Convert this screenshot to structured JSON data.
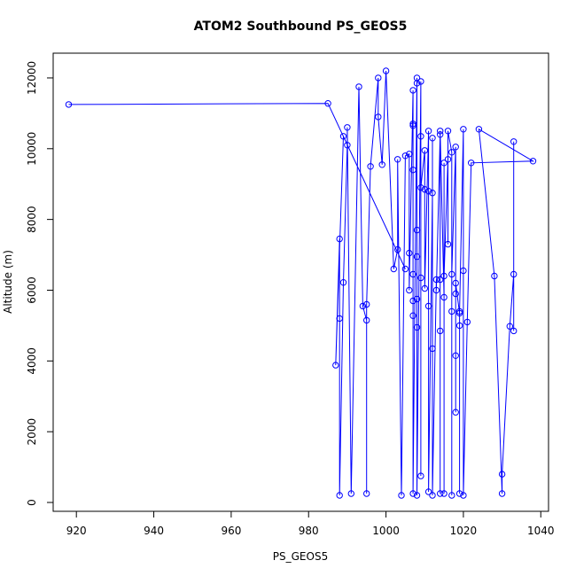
{
  "chart_data": {
    "type": "line",
    "title": "ATOM2 Southbound PS_GEOS5",
    "xlabel": "PS_GEOS5",
    "ylabel": "Altitude (m)",
    "xlim": [
      914,
      1042
    ],
    "ylim": [
      -250,
      12700
    ],
    "x_ticks": [
      920,
      940,
      960,
      980,
      1000,
      1020,
      1040
    ],
    "y_ticks": [
      0,
      2000,
      4000,
      6000,
      8000,
      10000,
      12000
    ],
    "grid": false,
    "legend": "none",
    "colors": {
      "series": "#0000ff",
      "axis": "#000000",
      "background": "#ffffff"
    },
    "series": [
      {
        "markers": "open-circle",
        "points": [
          [
            918,
            11250
          ],
          [
            985,
            11280
          ],
          [
            1005,
            6600
          ],
          [
            989,
            10350
          ],
          [
            987,
            3880
          ],
          [
            988,
            7450
          ],
          [
            988,
            5200
          ],
          [
            988,
            200
          ],
          [
            989,
            6220
          ],
          [
            990,
            10100
          ],
          [
            990,
            10600
          ],
          [
            991,
            250
          ],
          [
            993,
            11750
          ],
          [
            994,
            5550
          ],
          [
            995,
            5150
          ],
          [
            995,
            250
          ],
          [
            995,
            5600
          ],
          [
            996,
            9500
          ],
          [
            998,
            12000
          ],
          [
            998,
            10900
          ],
          [
            999,
            9550
          ],
          [
            1000,
            12200
          ],
          [
            1002,
            6600
          ],
          [
            1003,
            7150
          ],
          [
            1003,
            9700
          ],
          [
            1004,
            200
          ],
          [
            1005,
            9800
          ],
          [
            1006,
            9850
          ],
          [
            1006,
            7050
          ],
          [
            1006,
            6000
          ],
          [
            1007,
            11650
          ],
          [
            1007,
            10700
          ],
          [
            1007,
            10650
          ],
          [
            1007,
            9400
          ],
          [
            1007,
            6450
          ],
          [
            1007,
            5700
          ],
          [
            1007,
            5280
          ],
          [
            1007,
            250
          ],
          [
            1008,
            12000
          ],
          [
            1008,
            11850
          ],
          [
            1008,
            7700
          ],
          [
            1008,
            6950
          ],
          [
            1008,
            5750
          ],
          [
            1008,
            4950
          ],
          [
            1008,
            200
          ],
          [
            1009,
            11900
          ],
          [
            1009,
            10350
          ],
          [
            1009,
            750
          ],
          [
            1009,
            6350
          ],
          [
            1009,
            8900
          ],
          [
            1010,
            9950
          ],
          [
            1010,
            8850
          ],
          [
            1010,
            6050
          ],
          [
            1011,
            10500
          ],
          [
            1011,
            8800
          ],
          [
            1011,
            5550
          ],
          [
            1011,
            300
          ],
          [
            1012,
            8750
          ],
          [
            1012,
            4350
          ],
          [
            1012,
            10300
          ],
          [
            1012,
            200
          ],
          [
            1013,
            6300
          ],
          [
            1013,
            6000
          ],
          [
            1014,
            10400
          ],
          [
            1014,
            4850
          ],
          [
            1014,
            250
          ],
          [
            1014,
            6300
          ],
          [
            1014,
            10500
          ],
          [
            1015,
            5800
          ],
          [
            1015,
            9600
          ],
          [
            1015,
            250
          ],
          [
            1015,
            6400
          ],
          [
            1016,
            9700
          ],
          [
            1016,
            7300
          ],
          [
            1016,
            10500
          ],
          [
            1017,
            9900
          ],
          [
            1017,
            5400
          ],
          [
            1017,
            200
          ],
          [
            1017,
            6450
          ],
          [
            1018,
            10050
          ],
          [
            1018,
            5900
          ],
          [
            1018,
            4150
          ],
          [
            1018,
            2550
          ],
          [
            1018,
            6200
          ],
          [
            1019,
            5350
          ],
          [
            1019,
            5000
          ],
          [
            1019,
            250
          ],
          [
            1019,
            5400
          ],
          [
            1020,
            10550
          ],
          [
            1020,
            6550
          ],
          [
            1020,
            200
          ],
          [
            1021,
            5100
          ],
          [
            1022,
            9600
          ],
          [
            1038,
            9650
          ],
          [
            1024,
            10550
          ],
          [
            1028,
            6400
          ],
          [
            1030,
            250
          ],
          [
            1030,
            800
          ],
          [
            1032,
            4980
          ],
          [
            1033,
            6450
          ],
          [
            1033,
            10200
          ],
          [
            1033,
            4850
          ]
        ]
      }
    ]
  }
}
